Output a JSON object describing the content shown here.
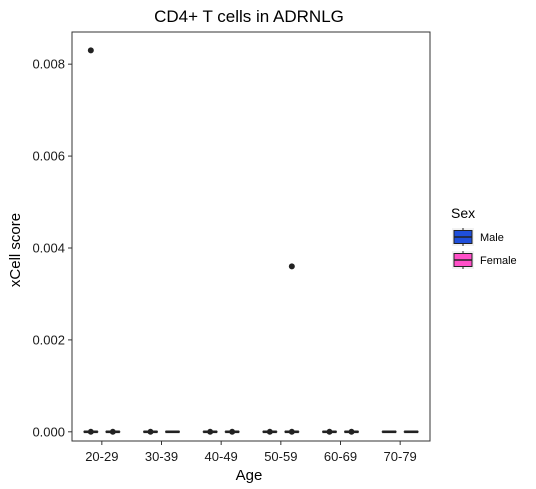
{
  "chart_data": {
    "type": "boxplot",
    "title": "CD4+ T cells in ADRNLG",
    "xlabel": "Age",
    "ylabel": "xCell score",
    "categories": [
      "20-29",
      "30-39",
      "40-49",
      "50-59",
      "60-69",
      "70-79"
    ],
    "ylim": [
      -0.0002,
      0.0087
    ],
    "yticks": [
      0.0,
      0.002,
      0.004,
      0.006,
      0.008
    ],
    "ytick_labels": [
      "0.000",
      "0.002",
      "0.004",
      "0.006",
      "0.008"
    ],
    "grid": false,
    "legend": {
      "title": "Sex",
      "placement": "right",
      "entries": [
        {
          "name": "Male",
          "color": "#1f4fdb"
        },
        {
          "name": "Female",
          "color": "#ff4fc8"
        }
      ]
    },
    "series": [
      {
        "name": "Male",
        "color": "#1f4fdb",
        "boxes": [
          {
            "category": "20-29",
            "min": 0,
            "q1": 0,
            "median": 0,
            "q3": 0,
            "max": 0,
            "outliers": [
              0.0083,
              0
            ]
          },
          {
            "category": "30-39",
            "min": 0,
            "q1": 0,
            "median": 0,
            "q3": 0,
            "max": 0,
            "outliers": [
              0
            ]
          },
          {
            "category": "40-49",
            "min": 0,
            "q1": 0,
            "median": 0,
            "q3": 0,
            "max": 0,
            "outliers": [
              0
            ]
          },
          {
            "category": "50-59",
            "min": 0,
            "q1": 0,
            "median": 0,
            "q3": 0,
            "max": 0,
            "outliers": [
              0
            ]
          },
          {
            "category": "60-69",
            "min": 0,
            "q1": 0,
            "median": 0,
            "q3": 0,
            "max": 0,
            "outliers": [
              0
            ]
          },
          {
            "category": "70-79",
            "min": 0,
            "q1": 0,
            "median": 0,
            "q3": 0,
            "max": 0,
            "outliers": []
          }
        ]
      },
      {
        "name": "Female",
        "color": "#ff4fc8",
        "boxes": [
          {
            "category": "20-29",
            "min": 0,
            "q1": 0,
            "median": 0,
            "q3": 0,
            "max": 0,
            "outliers": [
              0
            ]
          },
          {
            "category": "30-39",
            "min": 0,
            "q1": 0,
            "median": 0,
            "q3": 0,
            "max": 0,
            "outliers": []
          },
          {
            "category": "40-49",
            "min": 0,
            "q1": 0,
            "median": 0,
            "q3": 0,
            "max": 0,
            "outliers": [
              0
            ]
          },
          {
            "category": "50-59",
            "min": 0,
            "q1": 0,
            "median": 0,
            "q3": 0,
            "max": 0,
            "outliers": [
              0.0036,
              0
            ]
          },
          {
            "category": "60-69",
            "min": 0,
            "q1": 0,
            "median": 0,
            "q3": 0,
            "max": 0,
            "outliers": [
              0
            ]
          },
          {
            "category": "70-79",
            "min": 0,
            "q1": 0,
            "median": 0,
            "q3": 0,
            "max": 0,
            "outliers": []
          }
        ]
      }
    ]
  }
}
